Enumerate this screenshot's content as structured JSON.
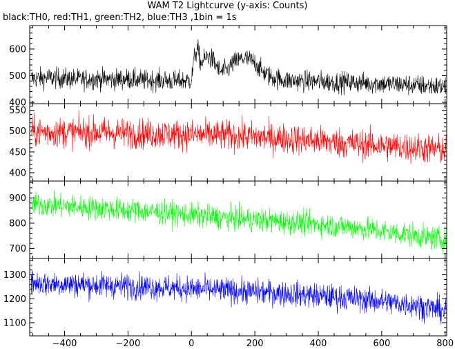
{
  "chart_data": {
    "type": "line",
    "title": "WAM T2 Lightcurve (y-axis: Counts)",
    "subtitle": "black:TH0, red:TH1, green:TH2, blue:TH3 ,1bin = 1s",
    "xlabel": "",
    "ylabel": "",
    "xlim": [
      -510,
      805
    ],
    "x_ticks": [
      -400,
      -200,
      0,
      200,
      400,
      600,
      800
    ],
    "x_tick_labels": [
      "−400",
      "−200",
      "0",
      "200",
      "400",
      "600",
      "800"
    ],
    "grid": false,
    "legend": "none",
    "panels": [
      {
        "color": "#000000",
        "ylim": [
          395,
          688
        ],
        "y_ticks": [
          400,
          500,
          600
        ],
        "series_x": [
          -500,
          -450,
          -400,
          -350,
          -300,
          -250,
          -200,
          -150,
          -100,
          -50,
          0,
          10,
          20,
          30,
          50,
          70,
          90,
          110,
          130,
          160,
          180,
          200,
          220,
          250,
          300,
          400,
          500,
          600,
          700,
          800
        ],
        "series_y": [
          490,
          492,
          490,
          486,
          488,
          486,
          488,
          483,
          483,
          480,
          483,
          575,
          600,
          545,
          575,
          555,
          515,
          518,
          545,
          565,
          560,
          550,
          520,
          495,
          482,
          478,
          475,
          470,
          465,
          458
        ],
        "noise": 28
      },
      {
        "color": "#ff0000",
        "ylim": [
          380,
          566
        ],
        "y_ticks": [
          400,
          450,
          500,
          550
        ],
        "series_x": [
          -500,
          -300,
          -100,
          100,
          300,
          500,
          700,
          800
        ],
        "series_y": [
          498,
          497,
          493,
          490,
          482,
          470,
          460,
          455
        ],
        "noise": 26
      },
      {
        "color": "#00ff00",
        "ylim": [
          660,
          967
        ],
        "y_ticks": [
          700,
          800,
          900
        ],
        "series_x": [
          -500,
          -300,
          -100,
          100,
          300,
          500,
          700,
          800
        ],
        "series_y": [
          875,
          860,
          843,
          822,
          805,
          785,
          752,
          735
        ],
        "noise": 34
      },
      {
        "color": "#0000ff",
        "ylim": [
          1045,
          1368
        ],
        "y_ticks": [
          1100,
          1200,
          1300
        ],
        "series_x": [
          -500,
          -300,
          -100,
          100,
          300,
          500,
          700,
          800
        ],
        "series_y": [
          1265,
          1258,
          1248,
          1235,
          1222,
          1202,
          1175,
          1150
        ],
        "noise": 38
      }
    ]
  }
}
